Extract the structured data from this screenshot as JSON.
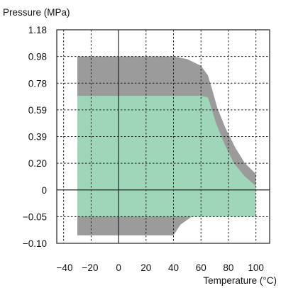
{
  "chart_data": {
    "type": "area",
    "ylabel": "Pressure (MPa)",
    "xlabel": "Temperature (°C)",
    "x_ticks": [
      -40,
      -20,
      0,
      20,
      40,
      60,
      80,
      100
    ],
    "x_tick_labels": [
      "−40",
      "−20",
      "0",
      "20",
      "40",
      "60",
      "80",
      "100"
    ],
    "y_tick_labels": [
      "1.18",
      "0.98",
      "0.78",
      "0.59",
      "0.39",
      "0.20",
      "0",
      "−0.05",
      "−0.10"
    ],
    "xlim": [
      -45,
      110
    ],
    "grid": true,
    "colors": {
      "outer_region": "#9b9b9b",
      "inner_region": "#9fd5b8",
      "grid": "#222222",
      "axis": "#222222"
    },
    "regions": [
      {
        "fill_key": "outer_region",
        "upper": [
          [
            -30,
            0.98
          ],
          [
            40,
            0.98
          ],
          [
            50,
            0.96
          ],
          [
            60,
            0.91
          ],
          [
            65,
            0.84
          ],
          [
            68,
            0.74
          ],
          [
            72,
            0.6
          ],
          [
            78,
            0.45
          ],
          [
            85,
            0.31
          ],
          [
            92,
            0.2
          ],
          [
            100,
            0.12
          ]
        ],
        "lower": [
          [
            -30,
            -0.085
          ],
          [
            40,
            -0.085
          ],
          [
            45,
            -0.065
          ],
          [
            55,
            -0.047
          ],
          [
            70,
            -0.035
          ],
          [
            85,
            -0.029
          ],
          [
            100,
            -0.025
          ]
        ]
      },
      {
        "fill_key": "inner_region",
        "upper": [
          [
            -30,
            0.69
          ],
          [
            60,
            0.69
          ],
          [
            65,
            0.68
          ],
          [
            67,
            0.62
          ],
          [
            71,
            0.49
          ],
          [
            77,
            0.34
          ],
          [
            84,
            0.2
          ],
          [
            92,
            0.1
          ],
          [
            100,
            0.03
          ]
        ],
        "lower": [
          [
            -30,
            -0.05
          ],
          [
            100,
            -0.05
          ]
        ]
      }
    ]
  }
}
